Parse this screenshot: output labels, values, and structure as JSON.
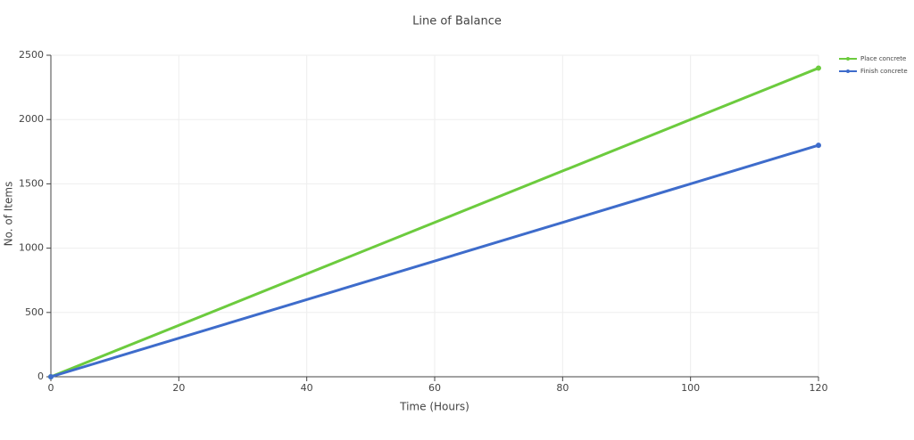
{
  "chart_data": {
    "type": "line",
    "title": "Line of Balance",
    "x_label": "Time (Hours)",
    "y_label": "No. of Items",
    "x": [
      0,
      120
    ],
    "series": [
      {
        "name": "Place concrete",
        "color": "#6ccb3e",
        "values": [
          0,
          2400
        ]
      },
      {
        "name": "Finish concrete",
        "color": "#3e6ccb",
        "values": [
          0,
          1800
        ]
      }
    ],
    "xlim": [
      0,
      120
    ],
    "ylim": [
      0,
      2500
    ],
    "xticks": [
      0,
      20,
      40,
      60,
      80,
      100,
      120
    ],
    "yticks": [
      0,
      500,
      1000,
      1500,
      2000,
      2500
    ],
    "grid": true,
    "legend": "top-right"
  }
}
